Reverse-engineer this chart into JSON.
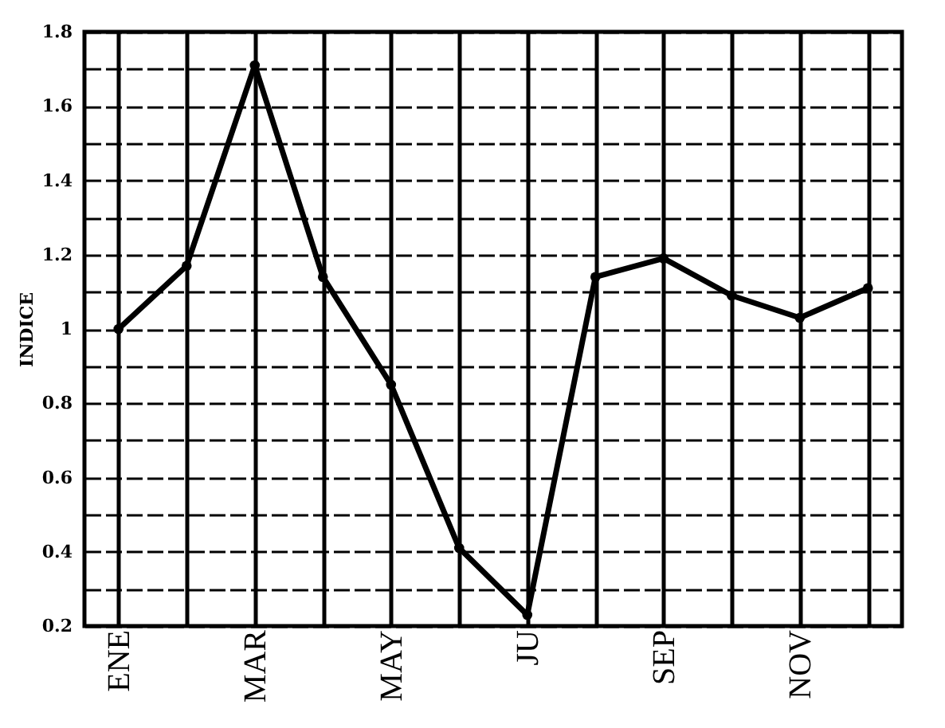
{
  "chart_data": {
    "type": "line",
    "ylabel": "INDICE",
    "categories": [
      "ENE",
      null,
      "MAR",
      null,
      "MAY",
      null,
      "JU",
      null,
      "SEP",
      null,
      "NOV",
      null
    ],
    "series": [
      {
        "color": "#000000",
        "values": [
          1.0,
          1.17,
          1.71,
          1.14,
          0.85,
          0.41,
          0.23,
          1.14,
          1.19,
          1.09,
          1.03,
          1.11
        ]
      }
    ],
    "ylim": [
      0.2,
      1.8
    ],
    "yticks": [
      0.2,
      {
        "value": 0.3,
        "label": null
      },
      0.4,
      {
        "value": 0.5,
        "label": null
      },
      0.6,
      {
        "value": 0.7,
        "label": null
      },
      0.8,
      {
        "value": 0.9,
        "label": null
      },
      1,
      {
        "value": 1.1,
        "label": null
      },
      1.2,
      {
        "value": 1.3,
        "label": null
      },
      1.4,
      {
        "value": 1.5,
        "label": null
      },
      1.6,
      {
        "value": 1.7,
        "label": null
      },
      1.8
    ],
    "grid": true,
    "marker": "circle",
    "line_style": "solid"
  }
}
